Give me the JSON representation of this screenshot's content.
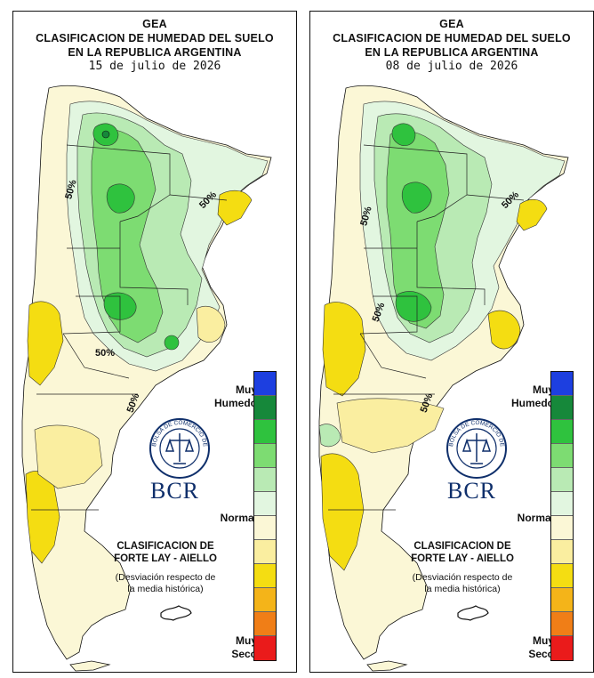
{
  "maps": [
    {
      "title_lines": [
        "GEA",
        "CLASIFICACION DE HUMEDAD DEL SUELO",
        "EN LA REPUBLICA ARGENTINA"
      ],
      "date": "15 de julio de 2026",
      "isoline_labels": [
        "50%",
        "50%",
        "50%",
        "50%"
      ]
    },
    {
      "title_lines": [
        "GEA",
        "CLASIFICACION DE HUMEDAD DEL SUELO",
        "EN LA REPUBLICA ARGENTINA"
      ],
      "date": "08 de julio de 2026",
      "isoline_labels": [
        "50%",
        "50%",
        "50%",
        "50%"
      ]
    }
  ],
  "legend": {
    "top_label_lines": [
      "Muy",
      "Humedo"
    ],
    "normal_label": "Normal",
    "bottom_label_lines": [
      "Muy",
      "Seco"
    ],
    "colors": [
      "#1d3fe0",
      "#16883a",
      "#2fc23e",
      "#7ddc72",
      "#b9eab4",
      "#e2f6e0",
      "#fbf7d6",
      "#faeea0",
      "#f4dd12",
      "#f4b419",
      "#f07e17",
      "#ea1b1b"
    ]
  },
  "logo": {
    "seal_text": "BOLSA DE COMERCIO DE ROSARIO",
    "brand": "BCR"
  },
  "classification": {
    "title_lines": [
      "CLASIFICACION DE",
      "FORTE LAY - AIELLO"
    ],
    "deviation_lines": [
      "(Desviación respecto de",
      "la media histórica)"
    ]
  }
}
